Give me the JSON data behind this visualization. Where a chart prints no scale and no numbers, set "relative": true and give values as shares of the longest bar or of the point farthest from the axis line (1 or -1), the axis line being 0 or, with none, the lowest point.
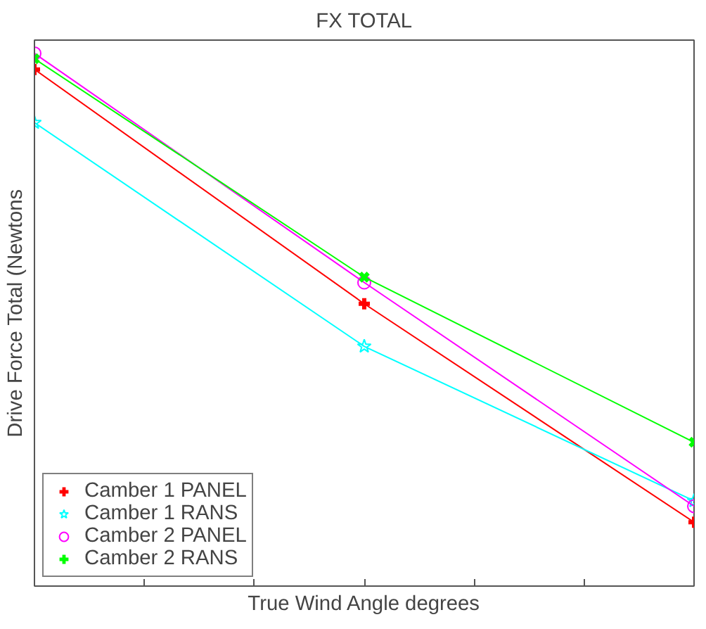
{
  "chart_data": {
    "type": "line",
    "title": "FX TOTAL",
    "xlabel": "True Wind Angle degrees",
    "ylabel": "Drive Force Total (Newtons",
    "relative": true,
    "categories": [
      null,
      null,
      null
    ],
    "legend": "bottom left",
    "grid": false,
    "series": [
      {
        "name": "Camber 1 PANEL",
        "color": "#ff0000",
        "marker": "cross",
        "values": [
          0.97,
          0.53,
          0.12
        ]
      },
      {
        "name": "Camber 1 RANS",
        "color": "#00ffff",
        "marker": "star",
        "values": [
          0.87,
          0.45,
          0.16
        ]
      },
      {
        "name": "Camber 2 PANEL",
        "color": "#ff00ff",
        "marker": "circle",
        "values": [
          1.0,
          0.57,
          0.15
        ]
      },
      {
        "name": "Camber 2 RANS",
        "color": "#00ff00",
        "marker": "x",
        "values": [
          0.99,
          0.58,
          0.27
        ]
      }
    ]
  }
}
